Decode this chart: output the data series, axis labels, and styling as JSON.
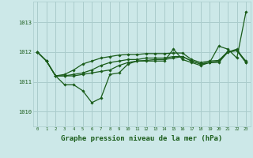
{
  "background_color": "#cce8e8",
  "grid_color": "#aacccc",
  "line_color": "#1a5c1a",
  "xlabel": "Graphe pression niveau de la mer (hPa)",
  "xlabel_fontsize": 6.5,
  "xlim": [
    -0.5,
    23.5
  ],
  "ylim": [
    1009.5,
    1013.7
  ],
  "yticks": [
    1010,
    1011,
    1012,
    1013
  ],
  "xticks": [
    0,
    1,
    2,
    3,
    4,
    5,
    6,
    7,
    8,
    9,
    10,
    11,
    12,
    13,
    14,
    15,
    16,
    17,
    18,
    19,
    20,
    21,
    22,
    23
  ],
  "series": [
    [
      1012.0,
      1011.7,
      1011.2,
      1010.9,
      1010.9,
      1010.7,
      1010.3,
      1010.45,
      1011.25,
      1011.3,
      1011.6,
      1011.7,
      1011.7,
      1011.7,
      1011.7,
      1012.1,
      1011.75,
      1011.65,
      1011.55,
      1011.65,
      1012.2,
      1012.1,
      1011.8,
      1013.35
    ],
    [
      1012.0,
      1011.7,
      1011.2,
      1011.2,
      1011.2,
      1011.25,
      1011.3,
      1011.35,
      1011.4,
      1011.55,
      1011.65,
      1011.7,
      1011.72,
      1011.75,
      1011.75,
      1011.8,
      1011.85,
      1011.7,
      1011.6,
      1011.65,
      1011.65,
      1012.0,
      1012.1,
      1011.65
    ],
    [
      1012.0,
      1011.7,
      1011.2,
      1011.2,
      1011.25,
      1011.3,
      1011.4,
      1011.55,
      1011.65,
      1011.7,
      1011.75,
      1011.75,
      1011.8,
      1011.8,
      1011.8,
      1011.85,
      1011.85,
      1011.7,
      1011.6,
      1011.65,
      1011.7,
      1012.0,
      1012.05,
      1011.65
    ],
    [
      1012.0,
      1011.7,
      1011.2,
      1011.25,
      1011.4,
      1011.6,
      1011.7,
      1011.8,
      1011.85,
      1011.9,
      1011.92,
      1011.92,
      1011.95,
      1011.95,
      1011.95,
      1011.97,
      1011.97,
      1011.75,
      1011.65,
      1011.7,
      1011.72,
      1012.02,
      1012.05,
      1011.7
    ]
  ]
}
